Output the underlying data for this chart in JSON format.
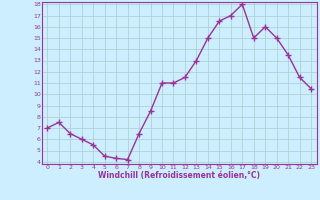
{
  "x": [
    0,
    1,
    2,
    3,
    4,
    5,
    6,
    7,
    8,
    9,
    10,
    11,
    12,
    13,
    14,
    15,
    16,
    17,
    18,
    19,
    20,
    21,
    22,
    23
  ],
  "y": [
    7,
    7.5,
    6.5,
    6,
    5.5,
    4.5,
    4.3,
    4.2,
    6.5,
    8.5,
    11,
    11,
    11.5,
    13,
    15,
    16.5,
    17,
    18,
    15,
    16,
    15,
    13.5,
    11.5,
    10.5
  ],
  "line_color": "#993399",
  "marker": "+",
  "marker_size": 4,
  "bg_color": "#cceeff",
  "grid_color": "#aacccc",
  "xlabel": "Windchill (Refroidissement éolien,°C)",
  "xlabel_color": "#993399",
  "tick_color": "#993399",
  "ylim": [
    4,
    18
  ],
  "xlim": [
    -0.5,
    23.5
  ],
  "yticks": [
    4,
    5,
    6,
    7,
    8,
    9,
    10,
    11,
    12,
    13,
    14,
    15,
    16,
    17,
    18
  ],
  "xticks": [
    0,
    1,
    2,
    3,
    4,
    5,
    6,
    7,
    8,
    9,
    10,
    11,
    12,
    13,
    14,
    15,
    16,
    17,
    18,
    19,
    20,
    21,
    22,
    23
  ],
  "spine_color": "#993399",
  "linewidth": 1.0
}
